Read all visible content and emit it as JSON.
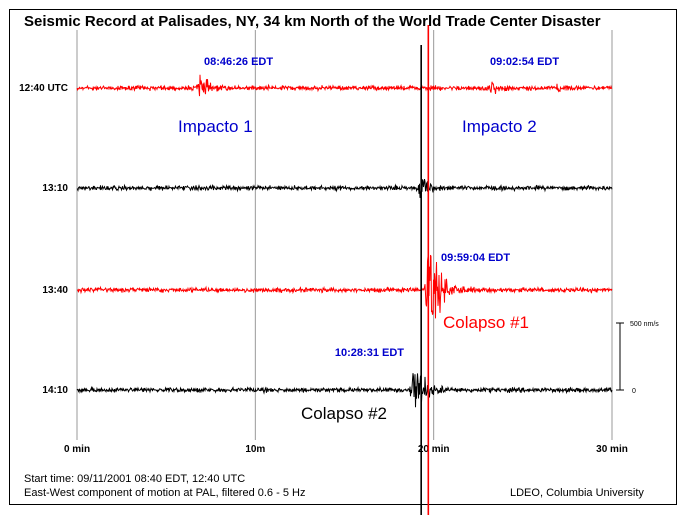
{
  "title": "Seismic Record at Palisades, NY, 34 km North of the World Trade Center Disaster",
  "footer": {
    "start_time": "Start time: 09/11/2001 08:40 EDT, 12:40 UTC",
    "component": "East-West component of motion at PAL, filtered 0.6 - 5 Hz",
    "credit": "LDEO, Columbia University"
  },
  "colors": {
    "red_trace": "#ff0000",
    "black_trace": "#000000",
    "event_time": "#0000cc",
    "grid": "#999999"
  },
  "chart_data": {
    "type": "line",
    "title": "Seismic Record at Palisades, NY, 34 km North of the World Trade Center Disaster",
    "xlabel": "",
    "ylabel": "",
    "xlim": [
      0,
      30
    ],
    "x_ticks": [
      {
        "value": 0,
        "label": "0 min"
      },
      {
        "value": 10,
        "label": "10m"
      },
      {
        "value": 20,
        "label": "20 min"
      },
      {
        "value": 30,
        "label": "30 min"
      }
    ],
    "grid": true,
    "traces": [
      {
        "start_label": "12:40 UTC",
        "color": "#ff0000",
        "bursts": [
          {
            "minute": 6.9,
            "amp": 1.7
          },
          {
            "minute": 23.2,
            "amp": 1.0
          },
          {
            "minute": 27.0,
            "amp": 0.5
          }
        ]
      },
      {
        "start_label": "13:10",
        "color": "#000000",
        "bursts": [
          {
            "minute": 19.3,
            "amp": 1.5
          }
        ]
      },
      {
        "start_label": "13:40",
        "color": "#ff0000",
        "bursts": [
          {
            "minute": 19.7,
            "amp": 6.0
          }
        ]
      },
      {
        "start_label": "14:10",
        "color": "#000000",
        "bursts": [
          {
            "minute": 18.9,
            "amp": 4.0
          }
        ]
      }
    ],
    "events": [
      {
        "time": "08:46:26 EDT",
        "label": "Impacto 1",
        "trace": 0,
        "minute": 6.43,
        "label_color": "#0000cc"
      },
      {
        "time": "09:02:54 EDT",
        "label": "Impacto 2",
        "trace": 0,
        "minute": 22.9,
        "label_color": "#0000cc"
      },
      {
        "time": "09:59:04 EDT",
        "label": "Colapso #1",
        "trace": 2,
        "minute": 19.07,
        "label_color": "#ff0000"
      },
      {
        "time": "10:28:31 EDT",
        "label": "Colapso #2",
        "trace": 3,
        "minute": 18.52,
        "label_color": "#000000"
      }
    ],
    "amplitude_scale": {
      "top_label": "500 nm/s",
      "bottom_label": "0"
    }
  }
}
